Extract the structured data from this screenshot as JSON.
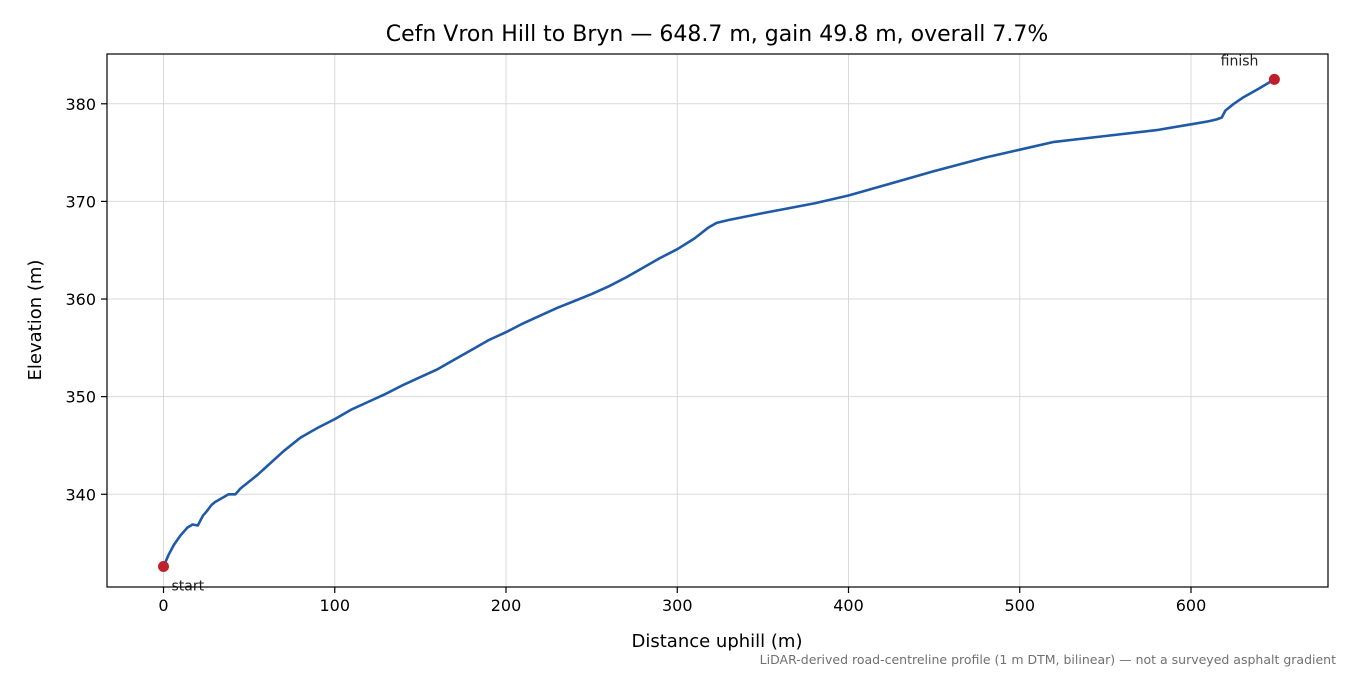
{
  "chart_data": {
    "type": "line",
    "title": "Cefn Vron Hill to Bryn — 648.7 m, gain 49.8 m, overall 7.7%",
    "xlabel": "Distance uphill (m)",
    "ylabel": "Elevation (m)",
    "xlim": [
      -33,
      680
    ],
    "ylim": [
      330.5,
      385.1
    ],
    "xticks": [
      0,
      100,
      200,
      300,
      400,
      500,
      600
    ],
    "yticks": [
      340,
      350,
      360,
      370,
      380
    ],
    "grid": true,
    "line_color": "#1f5aa6",
    "marker_color": "#c0202a",
    "series": [
      {
        "x": [
          0,
          3,
          6,
          10,
          14,
          17,
          20,
          23,
          25,
          28,
          30,
          34,
          38,
          42,
          45,
          50,
          55,
          60,
          70,
          80,
          90,
          100,
          110,
          120,
          130,
          140,
          150,
          160,
          170,
          180,
          190,
          200,
          210,
          220,
          230,
          240,
          250,
          260,
          270,
          280,
          290,
          300,
          310,
          318,
          323,
          330,
          350,
          380,
          400,
          420,
          450,
          480,
          500,
          520,
          550,
          580,
          600,
          610,
          615,
          618,
          620,
          625,
          630,
          640,
          648.7
        ],
        "y": [
          332.6,
          333.8,
          334.8,
          335.8,
          336.6,
          336.9,
          336.8,
          337.8,
          338.2,
          338.9,
          339.2,
          339.6,
          340.0,
          340.0,
          340.6,
          341.3,
          342.0,
          342.8,
          344.4,
          345.8,
          346.8,
          347.7,
          348.7,
          349.5,
          350.3,
          351.2,
          352.0,
          352.8,
          353.8,
          354.8,
          355.8,
          356.6,
          357.5,
          358.3,
          359.1,
          359.8,
          360.5,
          361.3,
          362.2,
          363.2,
          364.2,
          365.1,
          366.2,
          367.3,
          367.8,
          368.1,
          368.8,
          369.8,
          370.6,
          371.6,
          373.1,
          374.5,
          375.3,
          376.1,
          376.7,
          377.3,
          377.9,
          378.2,
          378.4,
          378.6,
          379.3,
          380.0,
          380.6,
          381.6,
          382.5
        ]
      }
    ],
    "annotations": [
      {
        "text": "start",
        "x": 0,
        "y": 332.6
      },
      {
        "text": "finish",
        "x": 648.7,
        "y": 382.5
      }
    ],
    "note": "LiDAR-derived road-centreline profile (1 m DTM, bilinear) — not a surveyed asphalt gradient"
  }
}
